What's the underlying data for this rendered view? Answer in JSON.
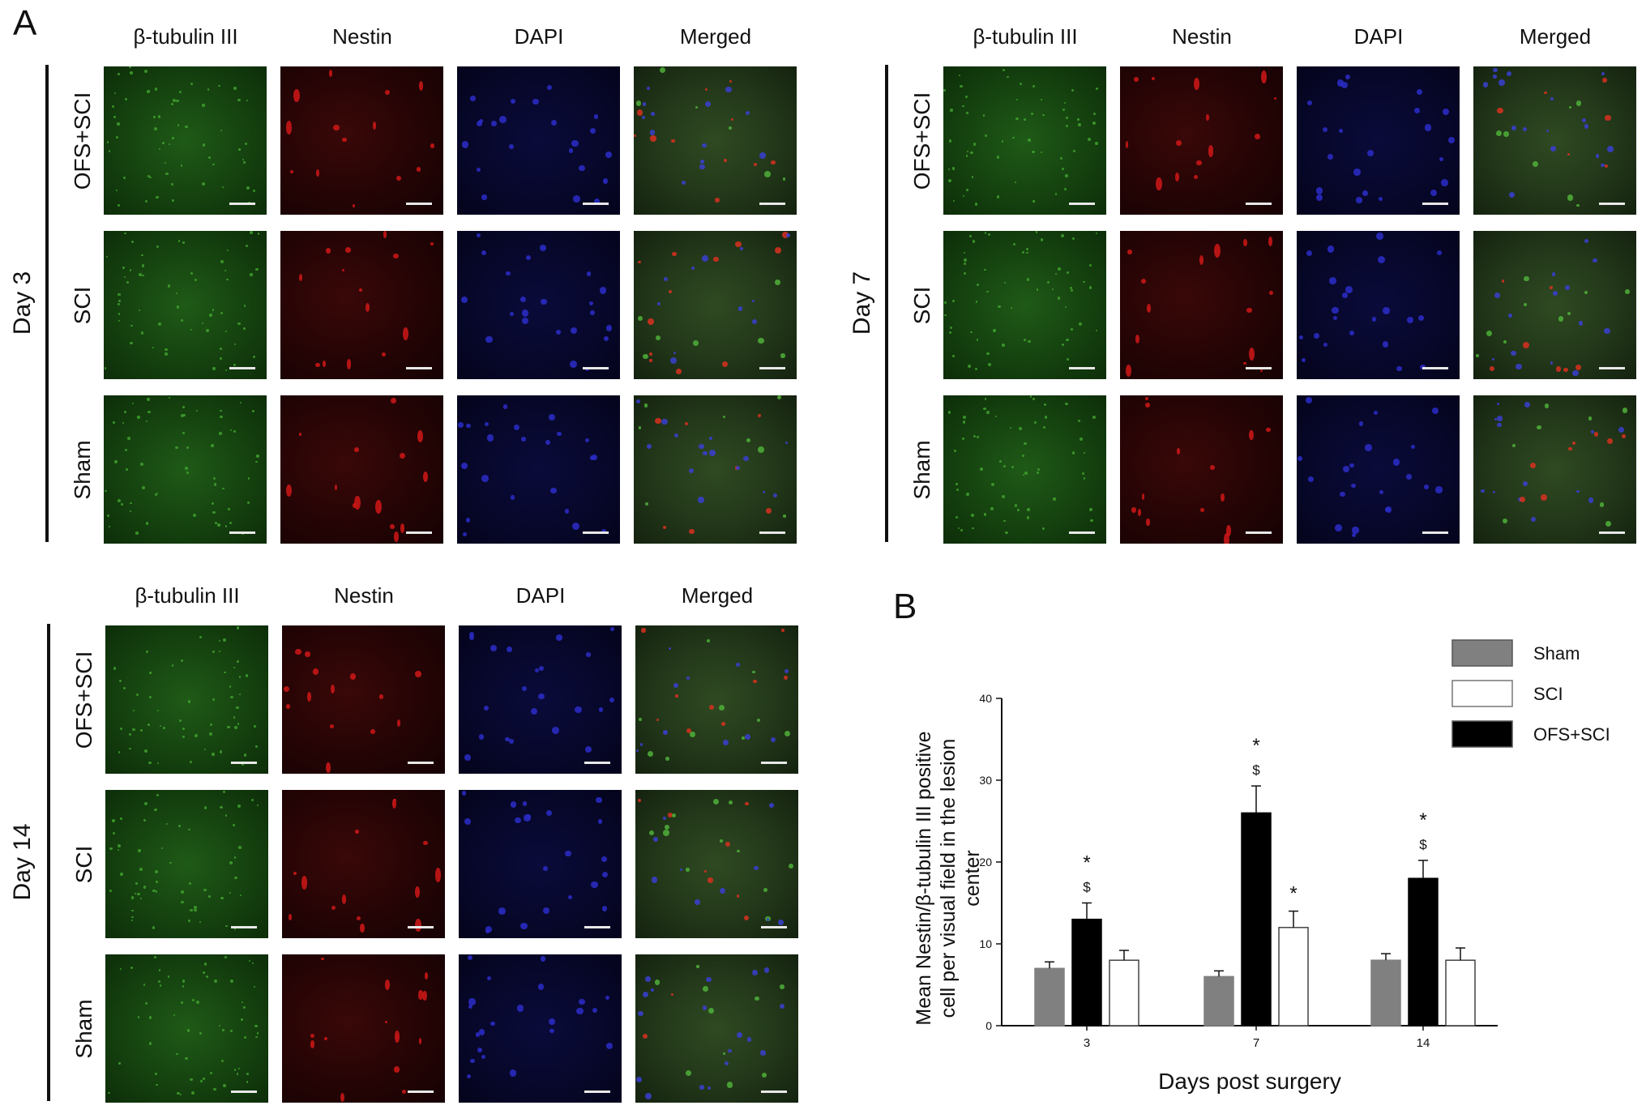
{
  "panel_a_label": "A",
  "panel_b_label": "B",
  "column_headers": [
    "β-tubulin III",
    "Nestin",
    "DAPI",
    "Merged"
  ],
  "row_labels": [
    "OFS+SCI",
    "SCI",
    "Sham"
  ],
  "blocks": [
    {
      "day_label": "Day 3"
    },
    {
      "day_label": "Day 7"
    },
    {
      "day_label": "Day 14"
    }
  ],
  "colors": {
    "sham": "#808080",
    "sci": "#ffffff",
    "ofs_sci": "#000000",
    "beta_tubulin_channel": "#1f5a17",
    "nestin_channel": "#3a0808",
    "dapi_channel": "#0a0b3a"
  },
  "chart_data": {
    "type": "bar",
    "categories": [
      "3",
      "7",
      "14"
    ],
    "xlabel": "Days post surgery",
    "ylabel": "Mean Nestin/β-tubulin III positive cell per visual field in the lesion center",
    "ylim": [
      0,
      40
    ],
    "yticks": [
      0,
      10,
      20,
      30,
      40
    ],
    "series": [
      {
        "name": "Sham",
        "values": [
          7,
          6,
          8
        ],
        "errors": [
          0.8,
          0.7,
          0.8
        ],
        "color": "#808080",
        "annotations": [
          "",
          "",
          ""
        ]
      },
      {
        "name": "OFS+SCI",
        "values": [
          13,
          26,
          18
        ],
        "errors": [
          2.0,
          3.3,
          2.2
        ],
        "color": "#000000",
        "annotations": [
          "*\n$",
          "*\n$",
          "*\n$"
        ]
      },
      {
        "name": "SCI",
        "values": [
          8,
          12,
          8
        ],
        "errors": [
          1.2,
          2.0,
          1.5
        ],
        "color": "#ffffff",
        "annotations": [
          "",
          "*",
          ""
        ]
      }
    ],
    "legend": {
      "position": "top-right",
      "order": [
        "Sham",
        "SCI",
        "OFS+SCI"
      ]
    }
  }
}
